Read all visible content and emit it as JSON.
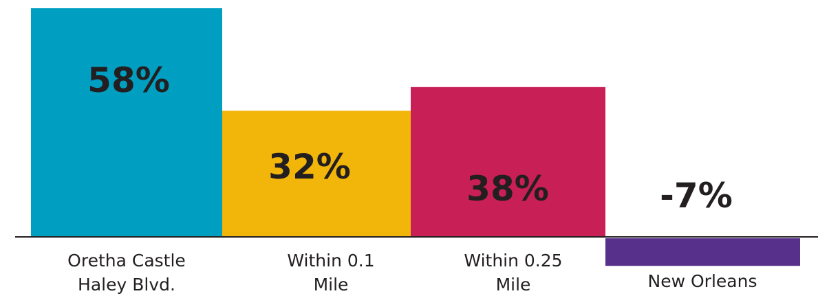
{
  "chart_data": {
    "type": "bar",
    "categories": [
      [
        "Oretha Castle",
        "Haley Blvd."
      ],
      [
        "Within 0.1",
        "Mile"
      ],
      [
        "Within 0.25",
        "Mile"
      ],
      [
        "New Orleans"
      ]
    ],
    "values": [
      58,
      32,
      38,
      -7
    ],
    "value_labels": [
      "58%",
      "32%",
      "38%",
      "-7%"
    ],
    "colors": [
      "#009fc2",
      "#f2b50a",
      "#c91f57",
      "#56308a"
    ],
    "title": "",
    "xlabel": "",
    "ylabel": "",
    "ylim": [
      -7,
      60
    ],
    "grid": false,
    "legend": "none"
  }
}
